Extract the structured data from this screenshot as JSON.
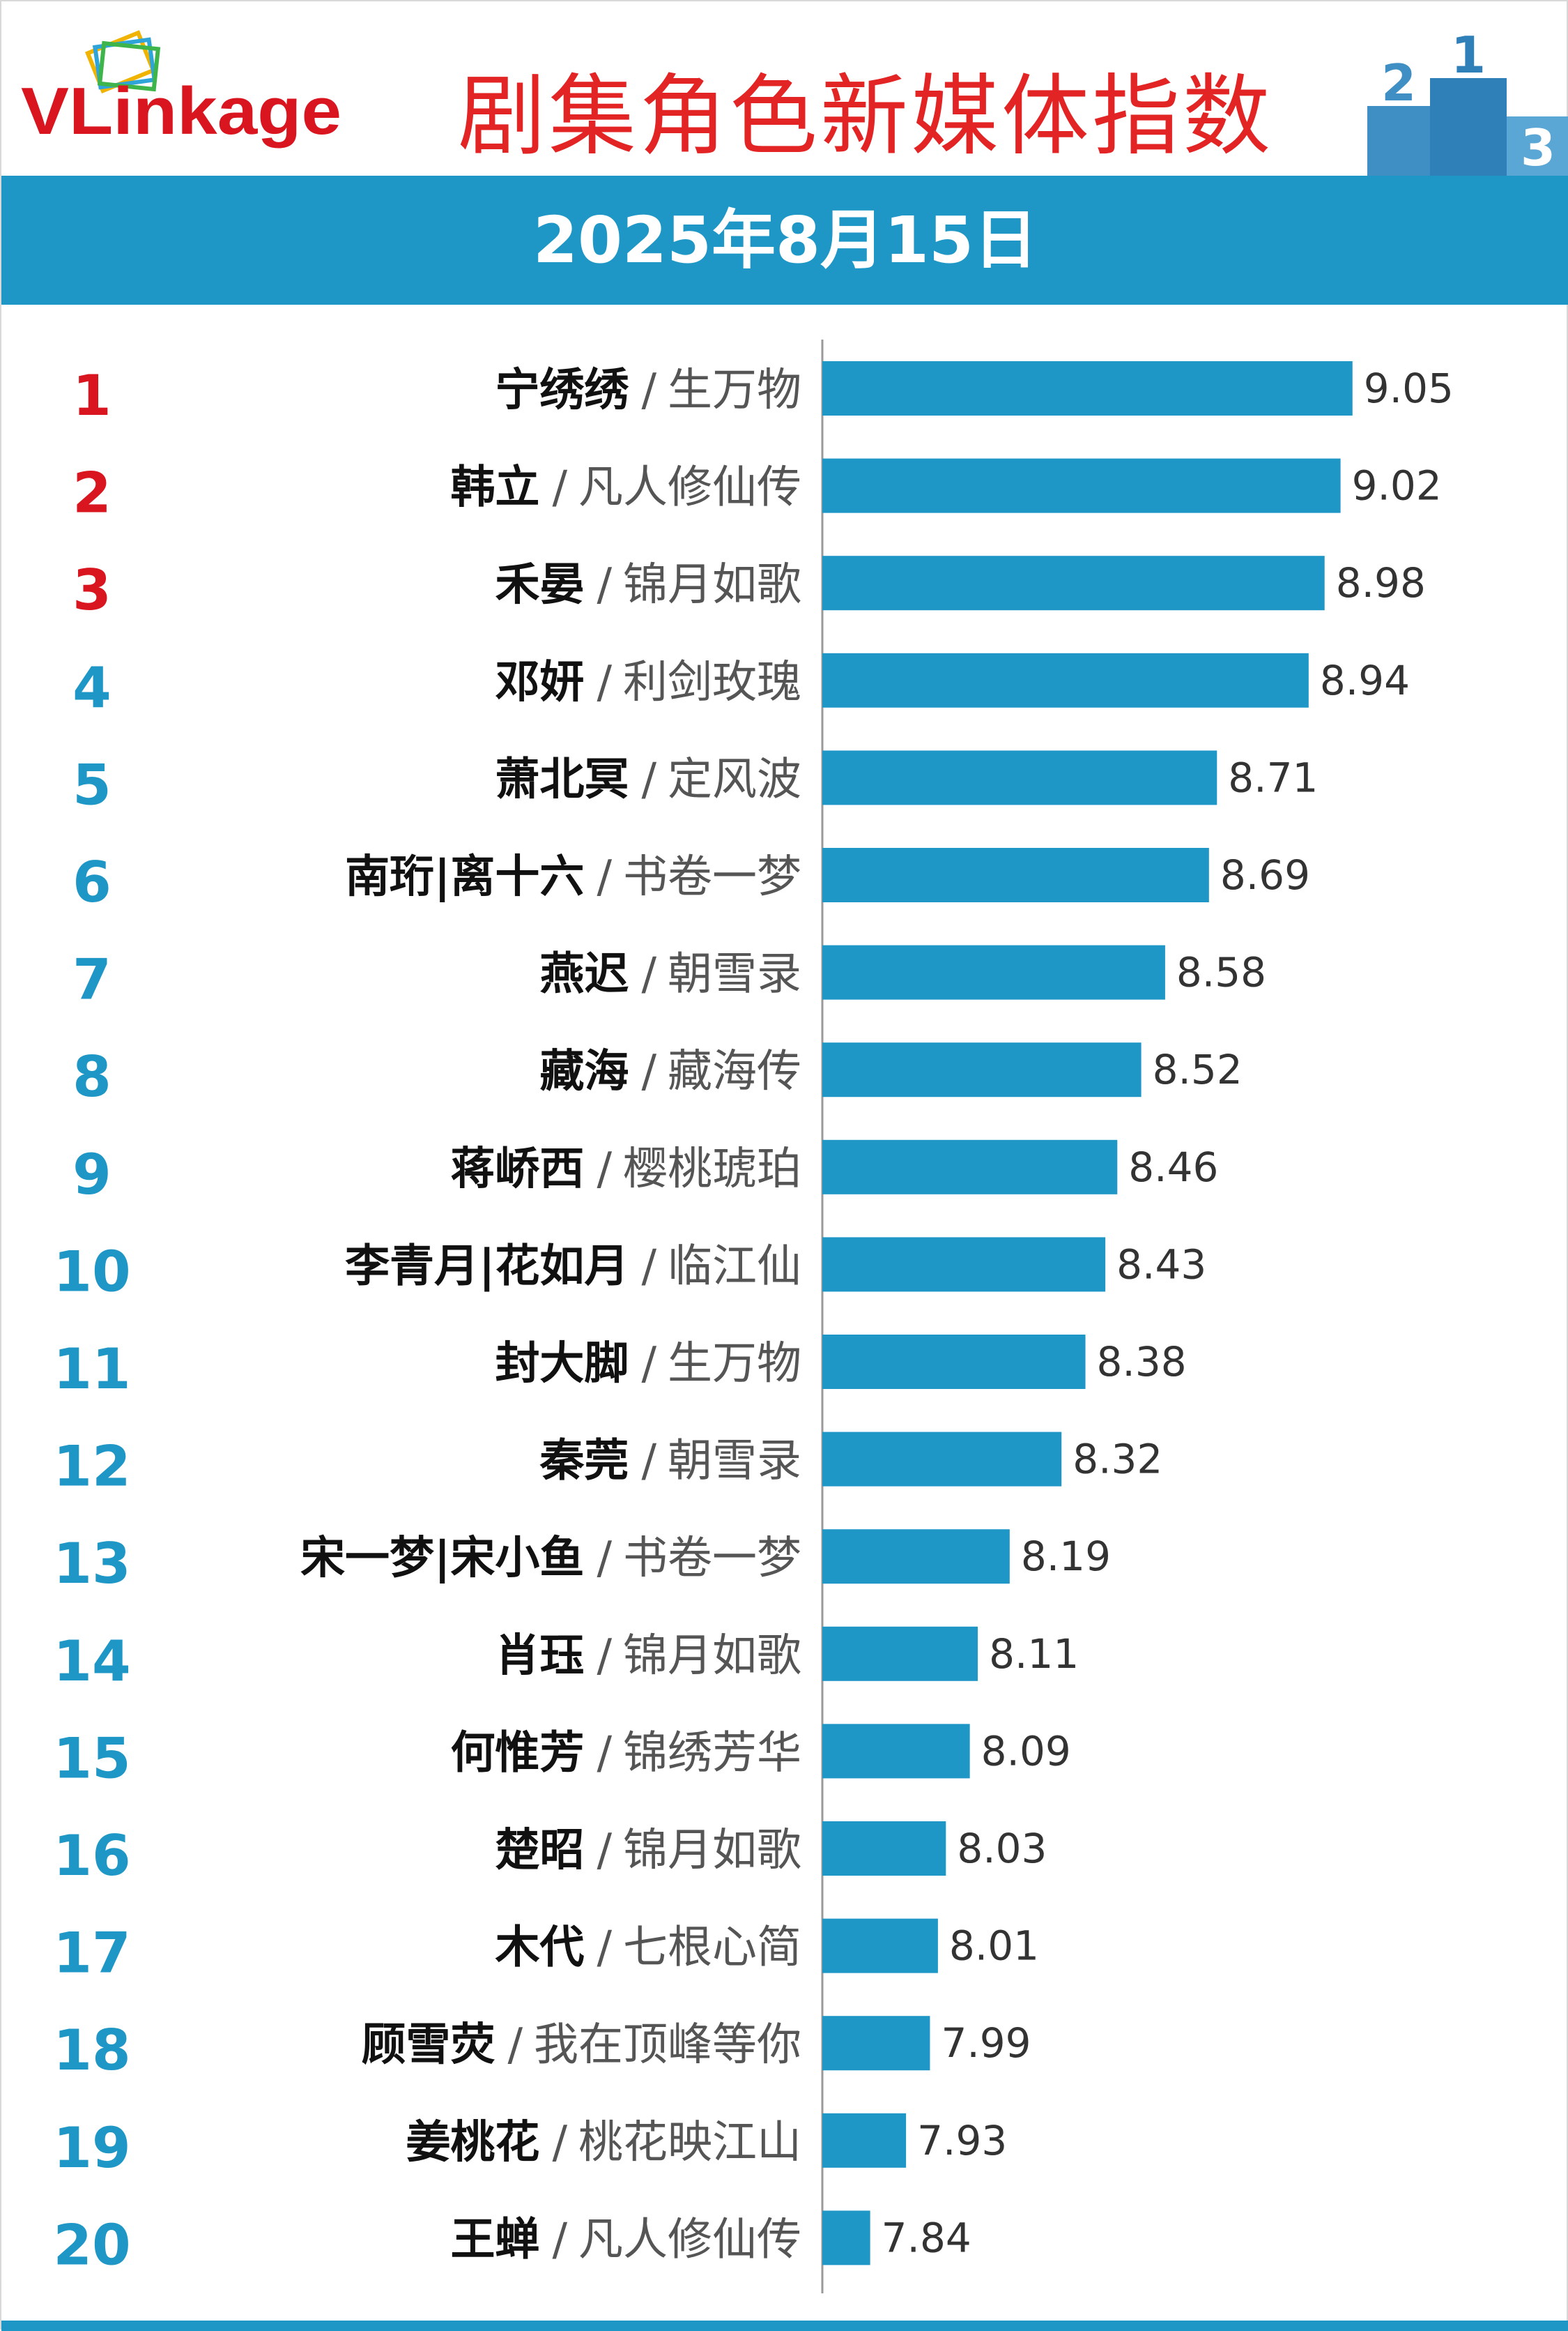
{
  "header": {
    "logo_text": "VLinkage",
    "title": "剧集角色新媒体指数",
    "date": "2025年8月15日"
  },
  "colors": {
    "bar": "#1f97c6",
    "title": "#e32424",
    "rank_top": "#d9151f",
    "rank_other": "#1f97c6",
    "band": "#1f97c6"
  },
  "chart_data": {
    "type": "bar",
    "orientation": "horizontal",
    "title": "剧集角色新媒体指数",
    "subtitle": "2025年8月15日",
    "xlabel": "",
    "ylabel": "",
    "xlim": [
      7.72,
      9.14
    ],
    "grid": false,
    "rows": [
      {
        "rank": "1",
        "character": "宁绣绣",
        "drama": "生万物",
        "value": 9.05
      },
      {
        "rank": "2",
        "character": "韩立",
        "drama": "凡人修仙传",
        "value": 9.02
      },
      {
        "rank": "3",
        "character": "禾晏",
        "drama": "锦月如歌",
        "value": 8.98
      },
      {
        "rank": "4",
        "character": "邓妍",
        "drama": "利剑玫瑰",
        "value": 8.94
      },
      {
        "rank": "5",
        "character": "萧北冥",
        "drama": "定风波",
        "value": 8.71
      },
      {
        "rank": "6",
        "character": "南珩|离十六",
        "drama": "书卷一梦",
        "value": 8.69
      },
      {
        "rank": "7",
        "character": "燕迟",
        "drama": "朝雪录",
        "value": 8.58
      },
      {
        "rank": "8",
        "character": "藏海",
        "drama": "藏海传",
        "value": 8.52
      },
      {
        "rank": "9",
        "character": "蒋峤西",
        "drama": "樱桃琥珀",
        "value": 8.46
      },
      {
        "rank": "10",
        "character": "李青月|花如月",
        "drama": "临江仙",
        "value": 8.43
      },
      {
        "rank": "11",
        "character": "封大脚",
        "drama": "生万物",
        "value": 8.38
      },
      {
        "rank": "12",
        "character": "秦莞",
        "drama": "朝雪录",
        "value": 8.32
      },
      {
        "rank": "13",
        "character": "宋一梦|宋小鱼",
        "drama": "书卷一梦",
        "value": 8.19
      },
      {
        "rank": "14",
        "character": "肖珏",
        "drama": "锦月如歌",
        "value": 8.11
      },
      {
        "rank": "15",
        "character": "何惟芳",
        "drama": "锦绣芳华",
        "value": 8.09
      },
      {
        "rank": "16",
        "character": "楚昭",
        "drama": "锦月如歌",
        "value": 8.03
      },
      {
        "rank": "17",
        "character": "木代",
        "drama": "七根心简",
        "value": 8.01
      },
      {
        "rank": "18",
        "character": "顾雪荧",
        "drama": "我在顶峰等你",
        "value": 7.99
      },
      {
        "rank": "19",
        "character": "姜桃花",
        "drama": "桃花映江山",
        "value": 7.93
      },
      {
        "rank": "20",
        "character": "王蝉",
        "drama": "凡人修仙传",
        "value": 7.84
      }
    ]
  }
}
